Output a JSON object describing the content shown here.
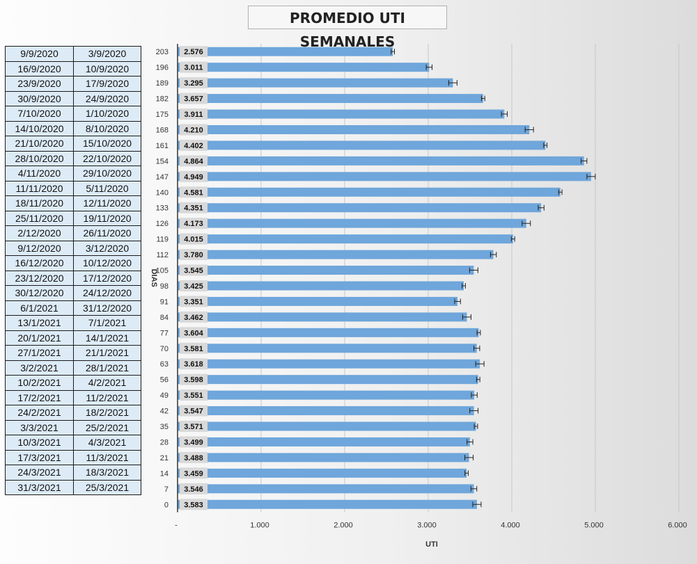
{
  "chart_data": {
    "type": "bar",
    "orientation": "horizontal",
    "title": "PROMEDIO UTI SEMANALES",
    "xlabel": "UTI",
    "ylabel": "DIAS",
    "xlim": [
      0,
      6
    ],
    "x_ticks": [
      "-",
      "1.000",
      "2.000",
      "3.000",
      "4.000",
      "5.000",
      "6.000"
    ],
    "grid": true,
    "error_bars": true,
    "bar_color": "#6fa6db",
    "rows": [
      {
        "day": "203",
        "value": 2.576,
        "label": "2.576",
        "date_end": "9/9/2020",
        "date_start": "3/9/2020"
      },
      {
        "day": "196",
        "value": 3.011,
        "label": "3.011",
        "date_end": "16/9/2020",
        "date_start": "10/9/2020"
      },
      {
        "day": "189",
        "value": 3.295,
        "label": "3.295",
        "date_end": "23/9/2020",
        "date_start": "17/9/2020"
      },
      {
        "day": "182",
        "value": 3.657,
        "label": "3.657",
        "date_end": "30/9/2020",
        "date_start": "24/9/2020"
      },
      {
        "day": "175",
        "value": 3.911,
        "label": "3.911",
        "date_end": "7/10/2020",
        "date_start": "1/10/2020"
      },
      {
        "day": "168",
        "value": 4.21,
        "label": "4.210",
        "date_end": "14/10/2020",
        "date_start": "8/10/2020"
      },
      {
        "day": "161",
        "value": 4.402,
        "label": "4.402",
        "date_end": "21/10/2020",
        "date_start": "15/10/2020"
      },
      {
        "day": "154",
        "value": 4.864,
        "label": "4.864",
        "date_end": "28/10/2020",
        "date_start": "22/10/2020"
      },
      {
        "day": "147",
        "value": 4.949,
        "label": "4.949",
        "date_end": "4/11/2020",
        "date_start": "29/10/2020"
      },
      {
        "day": "140",
        "value": 4.581,
        "label": "4.581",
        "date_end": "11/11/2020",
        "date_start": "5/11/2020"
      },
      {
        "day": "133",
        "value": 4.351,
        "label": "4.351",
        "date_end": "18/11/2020",
        "date_start": "12/11/2020"
      },
      {
        "day": "126",
        "value": 4.173,
        "label": "4.173",
        "date_end": "25/11/2020",
        "date_start": "19/11/2020"
      },
      {
        "day": "119",
        "value": 4.015,
        "label": "4.015",
        "date_end": "2/12/2020",
        "date_start": "26/11/2020"
      },
      {
        "day": "112",
        "value": 3.78,
        "label": "3.780",
        "date_end": "9/12/2020",
        "date_start": "3/12/2020"
      },
      {
        "day": "105",
        "value": 3.545,
        "label": "3.545",
        "date_end": "16/12/2020",
        "date_start": "10/12/2020"
      },
      {
        "day": "98",
        "value": 3.425,
        "label": "3.425",
        "date_end": "23/12/2020",
        "date_start": "17/12/2020"
      },
      {
        "day": "91",
        "value": 3.351,
        "label": "3.351",
        "date_end": "30/12/2020",
        "date_start": "24/12/2020"
      },
      {
        "day": "84",
        "value": 3.462,
        "label": "3.462",
        "date_end": "6/1/2021",
        "date_start": "31/12/2020"
      },
      {
        "day": "77",
        "value": 3.604,
        "label": "3.604",
        "date_end": "13/1/2021",
        "date_start": "7/1/2021"
      },
      {
        "day": "70",
        "value": 3.581,
        "label": "3.581",
        "date_end": "20/1/2021",
        "date_start": "14/1/2021"
      },
      {
        "day": "63",
        "value": 3.618,
        "label": "3.618",
        "date_end": "27/1/2021",
        "date_start": "21/1/2021"
      },
      {
        "day": "56",
        "value": 3.598,
        "label": "3.598",
        "date_end": "3/2/2021",
        "date_start": "28/1/2021"
      },
      {
        "day": "49",
        "value": 3.551,
        "label": "3.551",
        "date_end": "10/2/2021",
        "date_start": "4/2/2021"
      },
      {
        "day": "42",
        "value": 3.547,
        "label": "3.547",
        "date_end": "17/2/2021",
        "date_start": "11/2/2021"
      },
      {
        "day": "35",
        "value": 3.571,
        "label": "3.571",
        "date_end": "24/2/2021",
        "date_start": "18/2/2021"
      },
      {
        "day": "28",
        "value": 3.499,
        "label": "3.499",
        "date_end": "3/3/2021",
        "date_start": "25/2/2021"
      },
      {
        "day": "21",
        "value": 3.488,
        "label": "3.488",
        "date_end": "10/3/2021",
        "date_start": "4/3/2021"
      },
      {
        "day": "14",
        "value": 3.459,
        "label": "3.459",
        "date_end": "17/3/2021",
        "date_start": "11/3/2021"
      },
      {
        "day": "7",
        "value": 3.546,
        "label": "3.546",
        "date_end": "24/3/2021",
        "date_start": "18/3/2021"
      },
      {
        "day": "0",
        "value": 3.583,
        "label": "3.583",
        "date_end": "31/3/2021",
        "date_start": "25/3/2021"
      }
    ]
  }
}
